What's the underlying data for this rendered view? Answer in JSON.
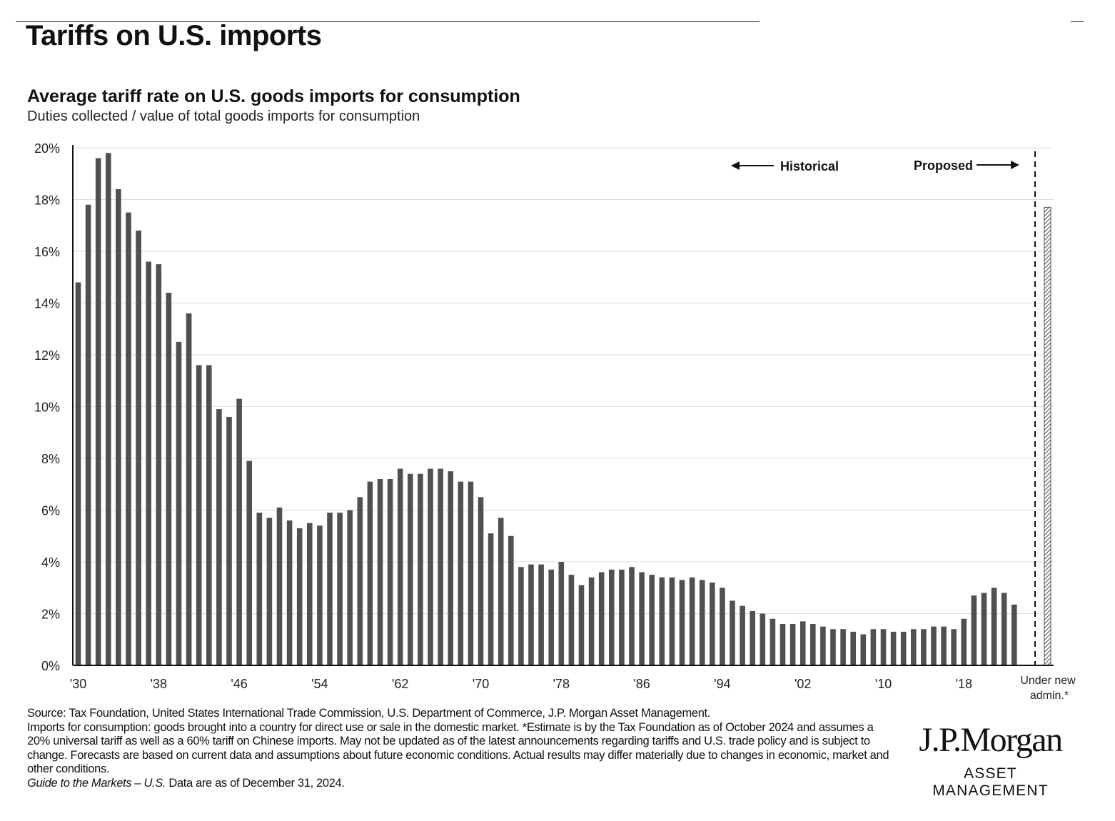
{
  "page": {
    "title": "Tariffs on U.S. imports"
  },
  "chart_data": {
    "type": "bar",
    "title": "Average tariff rate on U.S. goods imports for consumption",
    "subtitle": "Duties collected / value of total goods imports for consumption",
    "xlabel": "",
    "ylabel": "",
    "ylim": [
      0,
      20
    ],
    "yticks": [
      "0%",
      "2%",
      "4%",
      "6%",
      "8%",
      "10%",
      "12%",
      "14%",
      "16%",
      "18%",
      "20%"
    ],
    "grid": true,
    "x_tick_labels": [
      {
        "year": 1930,
        "label": "'30"
      },
      {
        "year": 1938,
        "label": "'38"
      },
      {
        "year": 1946,
        "label": "'46"
      },
      {
        "year": 1954,
        "label": "'54"
      },
      {
        "year": 1962,
        "label": "'62"
      },
      {
        "year": 1970,
        "label": "'70"
      },
      {
        "year": 1978,
        "label": "'78"
      },
      {
        "year": 1986,
        "label": "'86"
      },
      {
        "year": 1994,
        "label": "'94"
      },
      {
        "year": 2002,
        "label": "'02"
      },
      {
        "year": 2010,
        "label": "'10"
      },
      {
        "year": 2018,
        "label": "'18"
      }
    ],
    "historical": {
      "years": [
        1930,
        1931,
        1932,
        1933,
        1934,
        1935,
        1936,
        1937,
        1938,
        1939,
        1940,
        1941,
        1942,
        1943,
        1944,
        1945,
        1946,
        1947,
        1948,
        1949,
        1950,
        1951,
        1952,
        1953,
        1954,
        1955,
        1956,
        1957,
        1958,
        1959,
        1960,
        1961,
        1962,
        1963,
        1964,
        1965,
        1966,
        1967,
        1968,
        1969,
        1970,
        1971,
        1972,
        1973,
        1974,
        1975,
        1976,
        1977,
        1978,
        1979,
        1980,
        1981,
        1982,
        1983,
        1984,
        1985,
        1986,
        1987,
        1988,
        1989,
        1990,
        1991,
        1992,
        1993,
        1994,
        1995,
        1996,
        1997,
        1998,
        1999,
        2000,
        2001,
        2002,
        2003,
        2004,
        2005,
        2006,
        2007,
        2008,
        2009,
        2010,
        2011,
        2012,
        2013,
        2014,
        2015,
        2016,
        2017,
        2018,
        2019,
        2020,
        2021,
        2022,
        2023
      ],
      "values": [
        14.8,
        17.8,
        19.6,
        19.8,
        18.4,
        17.5,
        16.8,
        15.6,
        15.5,
        14.4,
        12.5,
        13.6,
        11.6,
        11.6,
        9.9,
        9.6,
        10.3,
        7.9,
        5.9,
        5.7,
        6.1,
        5.6,
        5.3,
        5.5,
        5.4,
        5.9,
        5.9,
        6.0,
        6.5,
        7.1,
        7.2,
        7.2,
        7.6,
        7.4,
        7.4,
        7.6,
        7.6,
        7.5,
        7.1,
        7.1,
        6.5,
        5.1,
        5.7,
        5.0,
        3.8,
        3.9,
        3.9,
        3.7,
        4.0,
        3.5,
        3.1,
        3.4,
        3.6,
        3.7,
        3.7,
        3.8,
        3.6,
        3.5,
        3.4,
        3.4,
        3.3,
        3.4,
        3.3,
        3.2,
        3.0,
        2.5,
        2.3,
        2.1,
        2.0,
        1.8,
        1.6,
        1.6,
        1.7,
        1.6,
        1.5,
        1.4,
        1.4,
        1.3,
        1.2,
        1.4,
        1.4,
        1.3,
        1.3,
        1.4,
        1.4,
        1.5,
        1.5,
        1.4,
        1.8,
        2.7,
        2.8,
        3.0,
        2.8,
        2.35
      ]
    },
    "proposed": {
      "label": "Under new admin.*",
      "value": 17.7
    },
    "annotations": {
      "historical": "Historical",
      "proposed": "Proposed"
    },
    "colors": {
      "bar": "#505050",
      "grid": "#dcdcdc",
      "axis": "#111111",
      "proposed_hatch": "#555555"
    }
  },
  "footnotes": {
    "source": "Source: Tax Foundation, United States International Trade Commission, U.S. Department of Commerce, J.P. Morgan Asset Management.",
    "body": "Imports for consumption: goods brought into a country for direct use or sale in the domestic market. *Estimate is by the Tax Foundation as of October 2024 and assumes a 20% universal tariff as well as a 60% tariff on Chinese imports. May not be updated as of the latest announcements regarding tariffs and U.S. trade policy and is subject to change. Forecasts are based on current data and assumptions about future economic conditions. Actual results may differ materially due to changes in economic, market and other conditions.",
    "guide_title": "Guide to the Markets – U.S.",
    "guide_date": " Data are as of December 31, 2024."
  },
  "logo": {
    "wordmark": "J.P.Morgan",
    "sub": "ASSET MANAGEMENT"
  }
}
